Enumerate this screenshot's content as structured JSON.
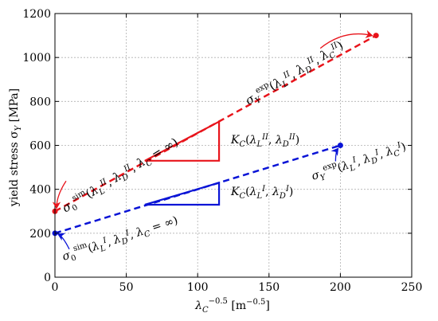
{
  "chart_data": {
    "type": "line",
    "xlabel_main": "λ",
    "xlabel_sub": "C",
    "xlabel_sup": "−0.5",
    "xlabel_units": "[m",
    "xlabel_units_sup": "−0.5",
    "xlabel_units_end": "]",
    "ylabel_main": "yield stress σ",
    "ylabel_sub": "Y",
    "ylabel_units": " [MPa]",
    "xlim": [
      0,
      250
    ],
    "ylim": [
      0,
      1200
    ],
    "xticks": [
      0,
      50,
      100,
      150,
      200,
      250
    ],
    "yticks": [
      0,
      200,
      400,
      600,
      800,
      1000,
      1200
    ],
    "grid": true,
    "series": [
      {
        "color": "#e8141b",
        "line_x": [
          0,
          225
        ],
        "line_y": [
          300,
          1100
        ],
        "point_start": [
          0,
          300
        ],
        "point_exp": [
          225,
          1100
        ],
        "triangle": [
          [
            63,
            530
          ],
          [
            115,
            530
          ],
          [
            115,
            708
          ]
        ]
      },
      {
        "color": "#0a14d6",
        "line_x": [
          0,
          200
        ],
        "line_y": [
          200,
          600
        ],
        "point_start": [
          0,
          200
        ],
        "point_exp": [
          200,
          600
        ],
        "triangle": [
          [
            63,
            330
          ],
          [
            115,
            330
          ],
          [
            115,
            430
          ]
        ]
      }
    ],
    "annotations": {
      "red_sim": "σ₀ˢⁱᵐ(λ_L^II, λ_D^II, λ_C = ∞)",
      "red_exp": "σ_Y^exp(λ_L^II, λ_D^II, λ_C^II)",
      "red_kc": "K_C(λ_L^II, λ_D^II)",
      "blue_sim": "σ₀ˢⁱᵐ(λ_L^I, λ_D^I, λ_C = ∞)",
      "blue_exp": "σ_Y^exp(λ_L^I, λ_D^I, λ_C^I)",
      "blue_kc": "K_C(λ_L^I, λ_D^I)"
    }
  }
}
